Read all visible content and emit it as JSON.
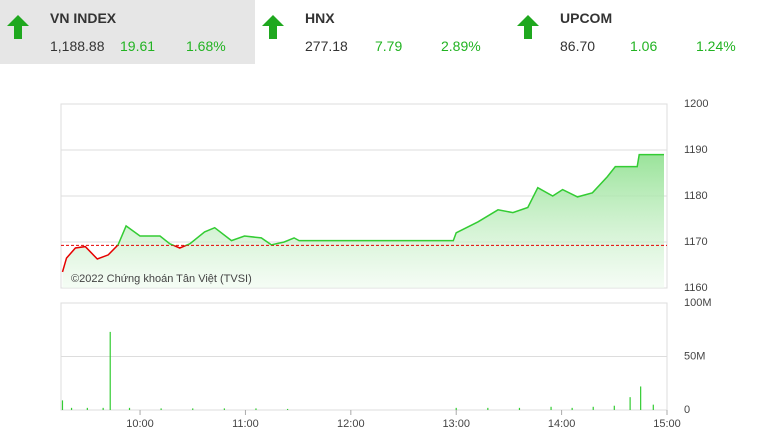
{
  "indices": [
    {
      "name": "VN INDEX",
      "value": "1,188.88",
      "change": "19.61",
      "percent": "1.68%"
    },
    {
      "name": "HNX",
      "value": "277.18",
      "change": "7.79",
      "percent": "2.89%"
    },
    {
      "name": "UPCOM",
      "value": "86.70",
      "change": "1.06",
      "percent": "1.24%"
    }
  ],
  "watermark": "©2022 Chứng khoán Tân Việt (TVSI)",
  "chart_data": [
    {
      "type": "line",
      "color": "#33cc33",
      "down_color": "#e60000",
      "reference": 1169.27,
      "reference_color": "#e60000",
      "xlim": [
        9.25,
        15
      ],
      "ylim": [
        1160,
        1200
      ],
      "yticks": [
        1160,
        1170,
        1180,
        1190,
        1200
      ],
      "grid": true,
      "x": [
        9.264,
        9.302,
        9.387,
        9.481,
        9.594,
        9.698,
        9.792,
        9.868,
        10,
        10.189,
        10.283,
        10.377,
        10.472,
        10.613,
        10.708,
        10.868,
        10.991,
        11.151,
        11.245,
        11.368,
        11.462,
        11.509,
        12.972,
        13,
        13.208,
        13.396,
        13.538,
        13.679,
        13.774,
        13.915,
        14.009,
        14.151,
        14.292,
        14.434,
        14.509,
        14.717,
        14.736,
        14.972
      ],
      "values": [
        1163.5,
        1166.5,
        1168.7,
        1169,
        1166.3,
        1167.2,
        1169.4,
        1173.5,
        1171.3,
        1171.3,
        1169.6,
        1168.7,
        1169.6,
        1172.2,
        1173.1,
        1170.3,
        1171.3,
        1170.9,
        1169.4,
        1170,
        1170.9,
        1170.3,
        1170.3,
        1172,
        1174.4,
        1177,
        1176.4,
        1177.5,
        1181.8,
        1180,
        1181.4,
        1179.8,
        1180.7,
        1184.2,
        1186.4,
        1186.4,
        1189,
        1189
      ]
    },
    {
      "type": "bar",
      "color": "#33cc33",
      "xlim": [
        9.25,
        15
      ],
      "ylim": [
        0,
        100
      ],
      "yticks": [
        {
          "value": 0,
          "label": "0"
        },
        {
          "value": 50,
          "label": "50M"
        },
        {
          "value": 100,
          "label": "100M"
        }
      ],
      "xticks": [
        {
          "value": 10,
          "label": "10:00"
        },
        {
          "value": 11,
          "label": "11:00"
        },
        {
          "value": 12,
          "label": "12:00"
        },
        {
          "value": 13,
          "label": "13:00"
        },
        {
          "value": 14,
          "label": "14:00"
        },
        {
          "value": 15,
          "label": "15:00"
        }
      ],
      "x": [
        9.264,
        9.35,
        9.5,
        9.65,
        9.717,
        9.9,
        10.2,
        10.5,
        10.8,
        11.1,
        11.4,
        13.0,
        13.3,
        13.6,
        13.9,
        14.1,
        14.3,
        14.5,
        14.65,
        14.75,
        14.87
      ],
      "values": [
        9,
        2,
        2,
        2,
        73,
        2,
        1.5,
        1.5,
        1.5,
        1.5,
        1,
        2,
        2,
        2,
        3,
        2,
        3,
        4,
        12,
        22,
        5
      ]
    }
  ]
}
